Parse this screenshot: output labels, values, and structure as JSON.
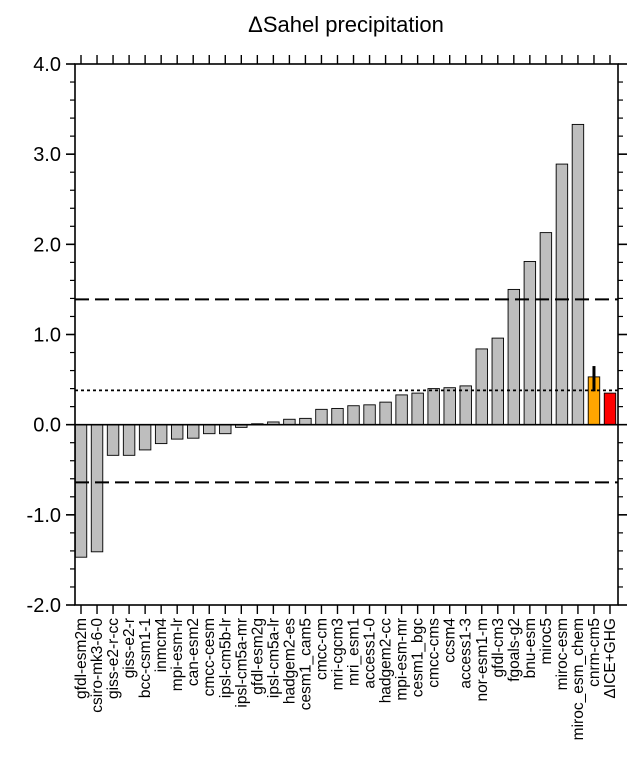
{
  "chart_data": {
    "type": "bar",
    "title": "ΔSahel precipitation",
    "xlabel": "",
    "ylabel": "",
    "ylim": [
      -2.0,
      4.0
    ],
    "yticks": [
      -2.0,
      -1.0,
      0.0,
      1.0,
      2.0,
      3.0,
      4.0
    ],
    "ytick_labels": [
      "-2.0",
      "-1.0",
      "0.0",
      "1.0",
      "2.0",
      "3.0",
      "4.0"
    ],
    "grid": false,
    "categories": [
      "gfdl-esm2m",
      "csiro-mk3-6-0",
      "giss-e2-r-cc",
      "giss-e2-r",
      "bcc-csm1-1",
      "inmcm4",
      "mpi-esm-lr",
      "can-esm2",
      "cmcc-cesm",
      "ipsl-cm5b-lr",
      "ipsl-cm5a-mr",
      "gfdl-esm2g",
      "ipsl-cm5a-lr",
      "hadgem2-es",
      "cesm1_cam5",
      "cmcc-cm",
      "mri-cgcm3",
      "mri_esm1",
      "access1-0",
      "hadgem2-cc",
      "mpi-esm-mr",
      "cesm1_bgc",
      "cmcc-cms",
      "ccsm4",
      "access1-3",
      "nor-esm1-m",
      "gfdl-cm3",
      "fgoals-g2",
      "bnu-esm",
      "miroc5",
      "miroc-esm",
      "miroc_esm_chem",
      "cnrm-cm5",
      "ΔICE+GHG"
    ],
    "values": [
      -1.47,
      -1.41,
      -0.34,
      -0.34,
      -0.28,
      -0.21,
      -0.16,
      -0.15,
      -0.1,
      -0.1,
      -0.03,
      0.01,
      0.03,
      0.06,
      0.07,
      0.17,
      0.18,
      0.21,
      0.22,
      0.25,
      0.33,
      0.35,
      0.4,
      0.41,
      0.43,
      0.84,
      0.96,
      1.5,
      1.81,
      2.13,
      2.89,
      3.33,
      0.53,
      0.35
    ],
    "bar_colors": {
      "default": "#bebebe",
      "cnrm-cm5": "#ffa500",
      "ΔICE+GHG": "#ff0000"
    },
    "error_bar": {
      "category": "cnrm-cm5",
      "low": 0.37,
      "high": 0.65,
      "color": "#000000"
    },
    "reference_lines": [
      {
        "y": 1.39,
        "style": "dashed"
      },
      {
        "y": 0.38,
        "style": "dotted"
      },
      {
        "y": -0.64,
        "style": "dashed"
      }
    ]
  }
}
